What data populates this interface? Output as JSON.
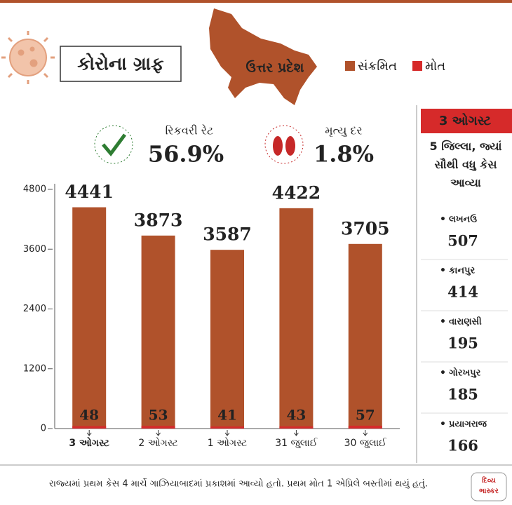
{
  "header": {
    "title": "કોરોના ગ્રાફ",
    "map_label": "ઉત્તર પ્રદેશ"
  },
  "stats": [
    {
      "label": "રિકવરી રેટ",
      "value": "56.9%"
    },
    {
      "label": "મૃત્યુ દર",
      "value": "1.8%"
    }
  ],
  "chart_data": {
    "type": "bar",
    "categories": [
      "3 ઓગસ્ટ",
      "2 ઓગસ્ટ",
      "1 ઓગસ્ટ",
      "31 જુલાઈ",
      "30 જુલાઈ"
    ],
    "series": [
      {
        "name": "સંક્રમિત",
        "color": "#b0522b",
        "values": [
          4441,
          3873,
          3587,
          4422,
          3705
        ]
      },
      {
        "name": "મોત",
        "color": "#d62a2a",
        "values": [
          48,
          53,
          41,
          43,
          57
        ]
      }
    ],
    "ylim": [
      0,
      4800
    ],
    "yticks": [
      0,
      1200,
      2400,
      3600,
      4800
    ]
  },
  "side_panel": {
    "date": "3 ઓગસ્ટ",
    "heading": "5 જિલ્લા, જ્યાં સૌથી વધુ કેસ આવ્યા",
    "districts": [
      {
        "name": "લખનઉ",
        "cases": "507"
      },
      {
        "name": "કાનપુર",
        "cases": "414"
      },
      {
        "name": "વારાણસી",
        "cases": "195"
      },
      {
        "name": "ગોરખપુર",
        "cases": "185"
      },
      {
        "name": "પ્રયાગરાજ",
        "cases": "166"
      }
    ]
  },
  "footer": {
    "text": "રાજ્યમાં પ્રથમ કેસ 4 માર્ચે ગાઝિયાબાદમાં પ્રકાશમાં આવ્યો હતો. પ્રથમ મોત 1 એપ્રિલે બસ્તીમાં થયું હતું.",
    "logo": "દિવ્ય ભાસ્કર"
  }
}
